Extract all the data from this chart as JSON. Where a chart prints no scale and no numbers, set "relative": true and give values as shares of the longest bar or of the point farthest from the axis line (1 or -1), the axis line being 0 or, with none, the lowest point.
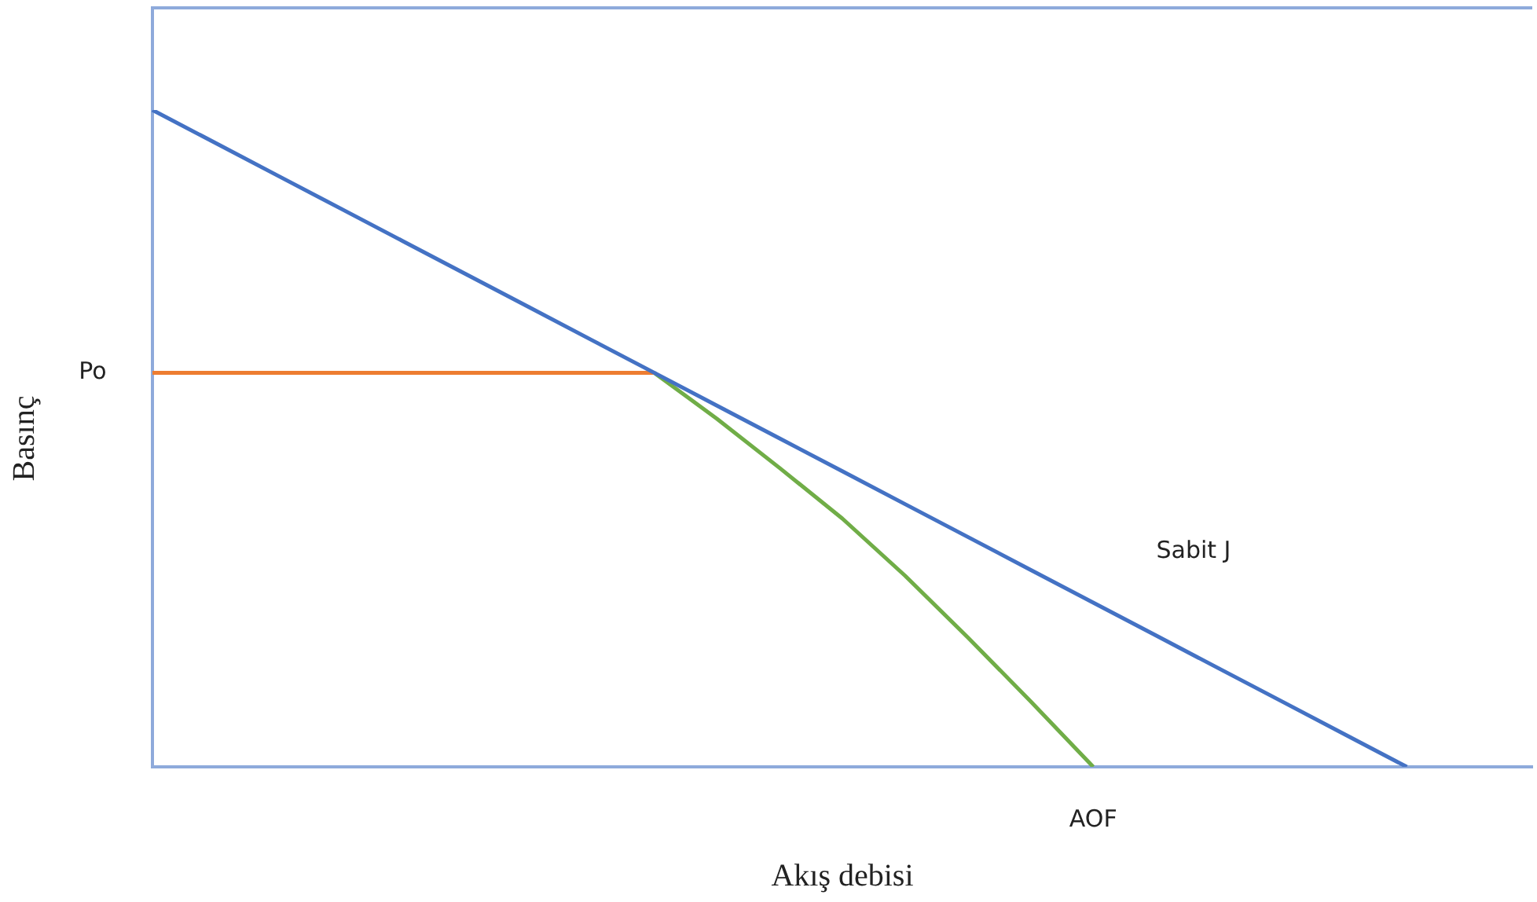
{
  "chart_data": {
    "type": "line",
    "relative": true,
    "xlabel": "Akış debisi",
    "ylabel": "Basınç",
    "grid": false,
    "legend": false,
    "marker": "none",
    "line_style": "solid",
    "categories": [
      null,
      null,
      null,
      null,
      null,
      null,
      null,
      null,
      null,
      null,
      null,
      null,
      null,
      null,
      null,
      null,
      null,
      null,
      null,
      null,
      null,
      null,
      null
    ],
    "series": [
      {
        "color": "#4472c4",
        "values": [
          1,
          0.95,
          0.9,
          0.85,
          0.8,
          0.75,
          0.7,
          0.65,
          0.6,
          0.55,
          0.5,
          0.45,
          0.4,
          0.35,
          0.3,
          0.25,
          0.2,
          0.15,
          0.1,
          0.05,
          0,
          null,
          null
        ]
      },
      {
        "color": "#ed7d31",
        "values": [
          0.6,
          0.6,
          0.6,
          0.6,
          0.6,
          0.6,
          0.6,
          0.6,
          0.6,
          null,
          null,
          null,
          null,
          null,
          null,
          null,
          null,
          null,
          null,
          null,
          null,
          null,
          null
        ]
      },
      {
        "color": "#70ad47",
        "values": [
          null,
          null,
          null,
          null,
          null,
          null,
          null,
          null,
          0.6,
          0.53,
          0.455,
          0.378,
          0.291,
          0.197,
          0.1,
          0,
          null,
          null,
          null,
          null,
          null,
          null,
          null
        ]
      }
    ],
    "annotations": [
      "Po",
      "Sabit J",
      "AOF"
    ]
  }
}
